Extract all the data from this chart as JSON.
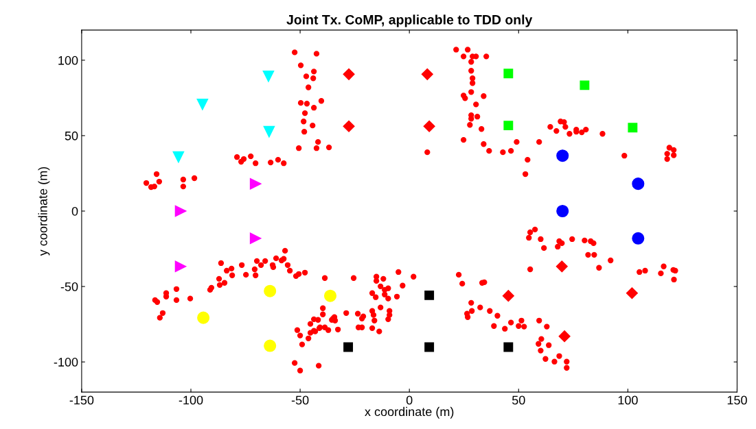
{
  "chart_data": {
    "type": "scatter",
    "title": "Joint Tx. CoMP, applicable to TDD only",
    "xlabel": "x coordinate (m)",
    "ylabel": "y coordinate (m)",
    "xlim": [
      -150,
      150
    ],
    "ylim": [
      -120,
      120
    ],
    "xticks": [
      -150,
      -100,
      -50,
      0,
      50,
      100,
      150
    ],
    "yticks": [
      -100,
      -50,
      0,
      50,
      100
    ],
    "grid": false,
    "series": [
      {
        "color": "#ff0000",
        "marker": "circle",
        "x": [
          -52.5,
          -42.5,
          -49.7,
          -43.7,
          -47.2,
          -44,
          -46.2,
          -49.7,
          -46.9,
          -43.7,
          -40.3,
          -47.8,
          -48.4,
          -44.3,
          -48.1,
          -41.8,
          -50.6,
          -42.5,
          -36.8,
          -78.9,
          -75.8,
          -72.6,
          -77,
          -70.4,
          -63.5,
          -60.1,
          -57.5,
          -115.7,
          -120.4,
          -114.5,
          -118.2,
          -103.5,
          -98.4,
          -103.5,
          -116.7,
          21.4,
          26.7,
          24.8,
          28.9,
          30.5,
          35.2,
          28.3,
          28.3,
          28.9,
          28.9,
          28.3,
          24.8,
          25.5,
          34,
          30.5,
          28.3,
          31.1,
          28.3,
          27.7,
          33,
          24.8,
          34,
          36.5,
          42.8,
          46.5,
          49.1,
          59.4,
          54.1,
          53.1,
          8.2,
          64.5,
          67.3,
          69.2,
          70.8,
          71.4,
          73.3,
          76.4,
          76.4,
          78.9,
          80.8,
          88.4,
          98.4,
          119,
          121,
          118,
          121,
          118,
          -56.9,
          -86.2,
          -76.7,
          -69.8,
          -66,
          -67.9,
          -61,
          -58.5,
          -57.5,
          -62.6,
          -62.3,
          -55.7,
          -54.7,
          -50.6,
          -51.9,
          -47.8,
          -38.7,
          -81.4,
          -83.6,
          -81.1,
          -74.8,
          -70.4,
          -70.8,
          -87.1,
          -84.6,
          -86.8,
          -90.6,
          -91.2,
          -106.6,
          -111.3,
          -111.3,
          -116.4,
          -115.4,
          -106.6,
          -100.3,
          -112.9,
          -114.2,
          -39.6,
          -39.6,
          -43.7,
          -35.5,
          -45.3,
          -51.3,
          -43.7,
          -50,
          -46.2,
          -41.2,
          -49.1,
          -52.5,
          -50,
          -41.5,
          -25.5,
          -15.1,
          -11.9,
          -15.1,
          -5,
          1.9,
          -13.2,
          -9.7,
          -11.3,
          -3.1,
          -17,
          -15.4,
          -11.3,
          -9.7,
          -5.7,
          -41.8,
          -34.9,
          -34,
          -34.3,
          -28.9,
          -23.6,
          -21.1,
          -21.7,
          -17,
          -16.4,
          -16,
          -13.2,
          -9.1,
          -9.1,
          -9.7,
          -40.9,
          -38.7,
          -37.1,
          -32.7,
          -45.3,
          -43.1,
          -23.3,
          -21.7,
          -17,
          -13.8,
          22.6,
          24.2,
          33.3,
          34.3,
          28.3,
          32.4,
          28.6,
          26.4,
          26.7,
          36.8,
          40.3,
          38.7,
          57.5,
          55.3,
          54.7,
          60.1,
          68.6,
          69.8,
          67.9,
          74.5,
          80.2,
          83,
          84.3,
          61.6,
          81.8,
          84.6,
          92.1,
          86.8,
          55.3,
          105.3,
          107.9,
          116.4,
          115.1,
          120.8,
          121.7,
          121.1,
          46.5,
          43.7,
          51.3,
          50,
          52.5,
          59.4,
          62.9,
          60.4,
          59.1,
          63.8,
          60.1,
          62.3,
          66.4,
          68.6,
          72,
          72
        ],
        "values": [
          105.2,
          104.3,
          96.6,
          92.5,
          89.3,
          88,
          82,
          71.7,
          71.2,
          68.5,
          73,
          64.9,
          59.4,
          56.7,
          52.6,
          45.8,
          41.7,
          41.7,
          42.2,
          35.8,
          34.5,
          36.3,
          32.7,
          31.7,
          32.2,
          34,
          31.7,
          24.5,
          18.6,
          19.5,
          15.9,
          20.9,
          21.8,
          16.3,
          16.3,
          107,
          107,
          102.5,
          102.5,
          102.5,
          102.5,
          98.9,
          93,
          88,
          84.8,
          78.9,
          76.6,
          74.8,
          76.2,
          70.7,
          63.5,
          62.6,
          61.2,
          57.1,
          54.4,
          47.2,
          44.4,
          39.9,
          39,
          39.9,
          45.8,
          45.8,
          34,
          24.5,
          39,
          55.8,
          53.1,
          59.4,
          59,
          55.8,
          51.2,
          54,
          52.6,
          52.2,
          54,
          51.2,
          36.7,
          42,
          40.5,
          38,
          37,
          34.5,
          -26.3,
          -34.5,
          -35.8,
          -33.1,
          -33.1,
          -35.8,
          -31.3,
          -32.7,
          -31.7,
          -35.8,
          -37.2,
          -35.8,
          -39.5,
          -41.7,
          -43.1,
          -40.8,
          -44.4,
          -38.1,
          -39.5,
          -42.6,
          -42.2,
          -42.6,
          -38.6,
          -44.9,
          -47.6,
          -49,
          -50.8,
          -52.2,
          -51.7,
          -54.4,
          -56.7,
          -59,
          -60.3,
          -59,
          -58,
          -67.6,
          -70.7,
          -64.4,
          -68.5,
          -71.7,
          -72.1,
          -74.8,
          -78.9,
          -79.4,
          -82.5,
          -84.4,
          -77.6,
          -88.4,
          -100.7,
          -105.7,
          -102.5,
          -44.4,
          -43.5,
          -44.9,
          -46.3,
          -40.4,
          -43.5,
          -49.9,
          -51.2,
          -52.2,
          -49.4,
          -54.4,
          -57.1,
          -55.3,
          -58,
          -56.7,
          -72.1,
          -71.2,
          -72.6,
          -70.3,
          -67.6,
          -68,
          -69.8,
          -71.2,
          -66.2,
          -68.9,
          -72.6,
          -63.9,
          -66.2,
          -68.9,
          -71.7,
          -77.1,
          -77.1,
          -78.9,
          -78.5,
          -80.7,
          -79.8,
          -77.1,
          -77.1,
          -77.6,
          -79.8,
          -42.2,
          -48.1,
          -47.6,
          -47.2,
          -60.8,
          -63.9,
          -66.2,
          -68,
          -70.3,
          -66.2,
          -69.4,
          -76.2,
          -12.2,
          -14.1,
          -17.7,
          -18.6,
          -20,
          -21.3,
          -23.6,
          -18.6,
          -19.5,
          -20,
          -21.3,
          -24.5,
          -29,
          -29,
          -32.7,
          -37.6,
          -38.6,
          -40.4,
          -39.5,
          -36.7,
          -41.3,
          -39,
          -39.5,
          -45.4,
          -73.9,
          -78,
          -72.6,
          -76.2,
          -76.6,
          -72.6,
          -76.6,
          -84.8,
          -88,
          -88.9,
          -92.5,
          -98,
          -99.8,
          -96.1,
          -99.8,
          -103.9
        ]
      },
      {
        "color": "#00ffff",
        "marker": "triangle_down",
        "x": [
          -64.5,
          -94.7,
          -64.2,
          -105.7
        ],
        "values": [
          89.3,
          70.7,
          52.6,
          35.8
        ]
      },
      {
        "color": "#ff00ff",
        "marker": "triangle_right",
        "x": [
          -70.4,
          -104.7,
          -70.4,
          -104.7
        ],
        "values": [
          18.1,
          0,
          -18.1,
          -36.7
        ]
      },
      {
        "color": "#ffff00",
        "marker": "circle_large",
        "x": [
          -63.8,
          -94.3,
          -36.2,
          -63.8
        ],
        "values": [
          -53,
          -70.7,
          -56.2,
          -89.3
        ]
      },
      {
        "color": "#000000",
        "marker": "square",
        "x": [
          9.1,
          -28,
          9.1,
          45.3
        ],
        "values": [
          -55.8,
          -90.2,
          -90.2,
          -90.2
        ]
      },
      {
        "color": "#ff0000",
        "marker": "diamond",
        "x": [
          -27.7,
          8.2,
          -27.7,
          9.1,
          69.8,
          45.3,
          101.9,
          71
        ],
        "values": [
          90.7,
          90.7,
          56.2,
          56.2,
          -36.7,
          -56.2,
          -54.4,
          -83
        ]
      },
      {
        "color": "#00ff00",
        "marker": "square",
        "x": [
          45.3,
          80.2,
          45.3,
          102.2
        ],
        "values": [
          91.2,
          83.4,
          56.7,
          55.3
        ]
      },
      {
        "color": "#0000ff",
        "marker": "circle_large",
        "x": [
          70.1,
          104.7,
          70.1,
          104.7
        ],
        "values": [
          36.7,
          18.1,
          0,
          -18.1
        ]
      }
    ]
  }
}
